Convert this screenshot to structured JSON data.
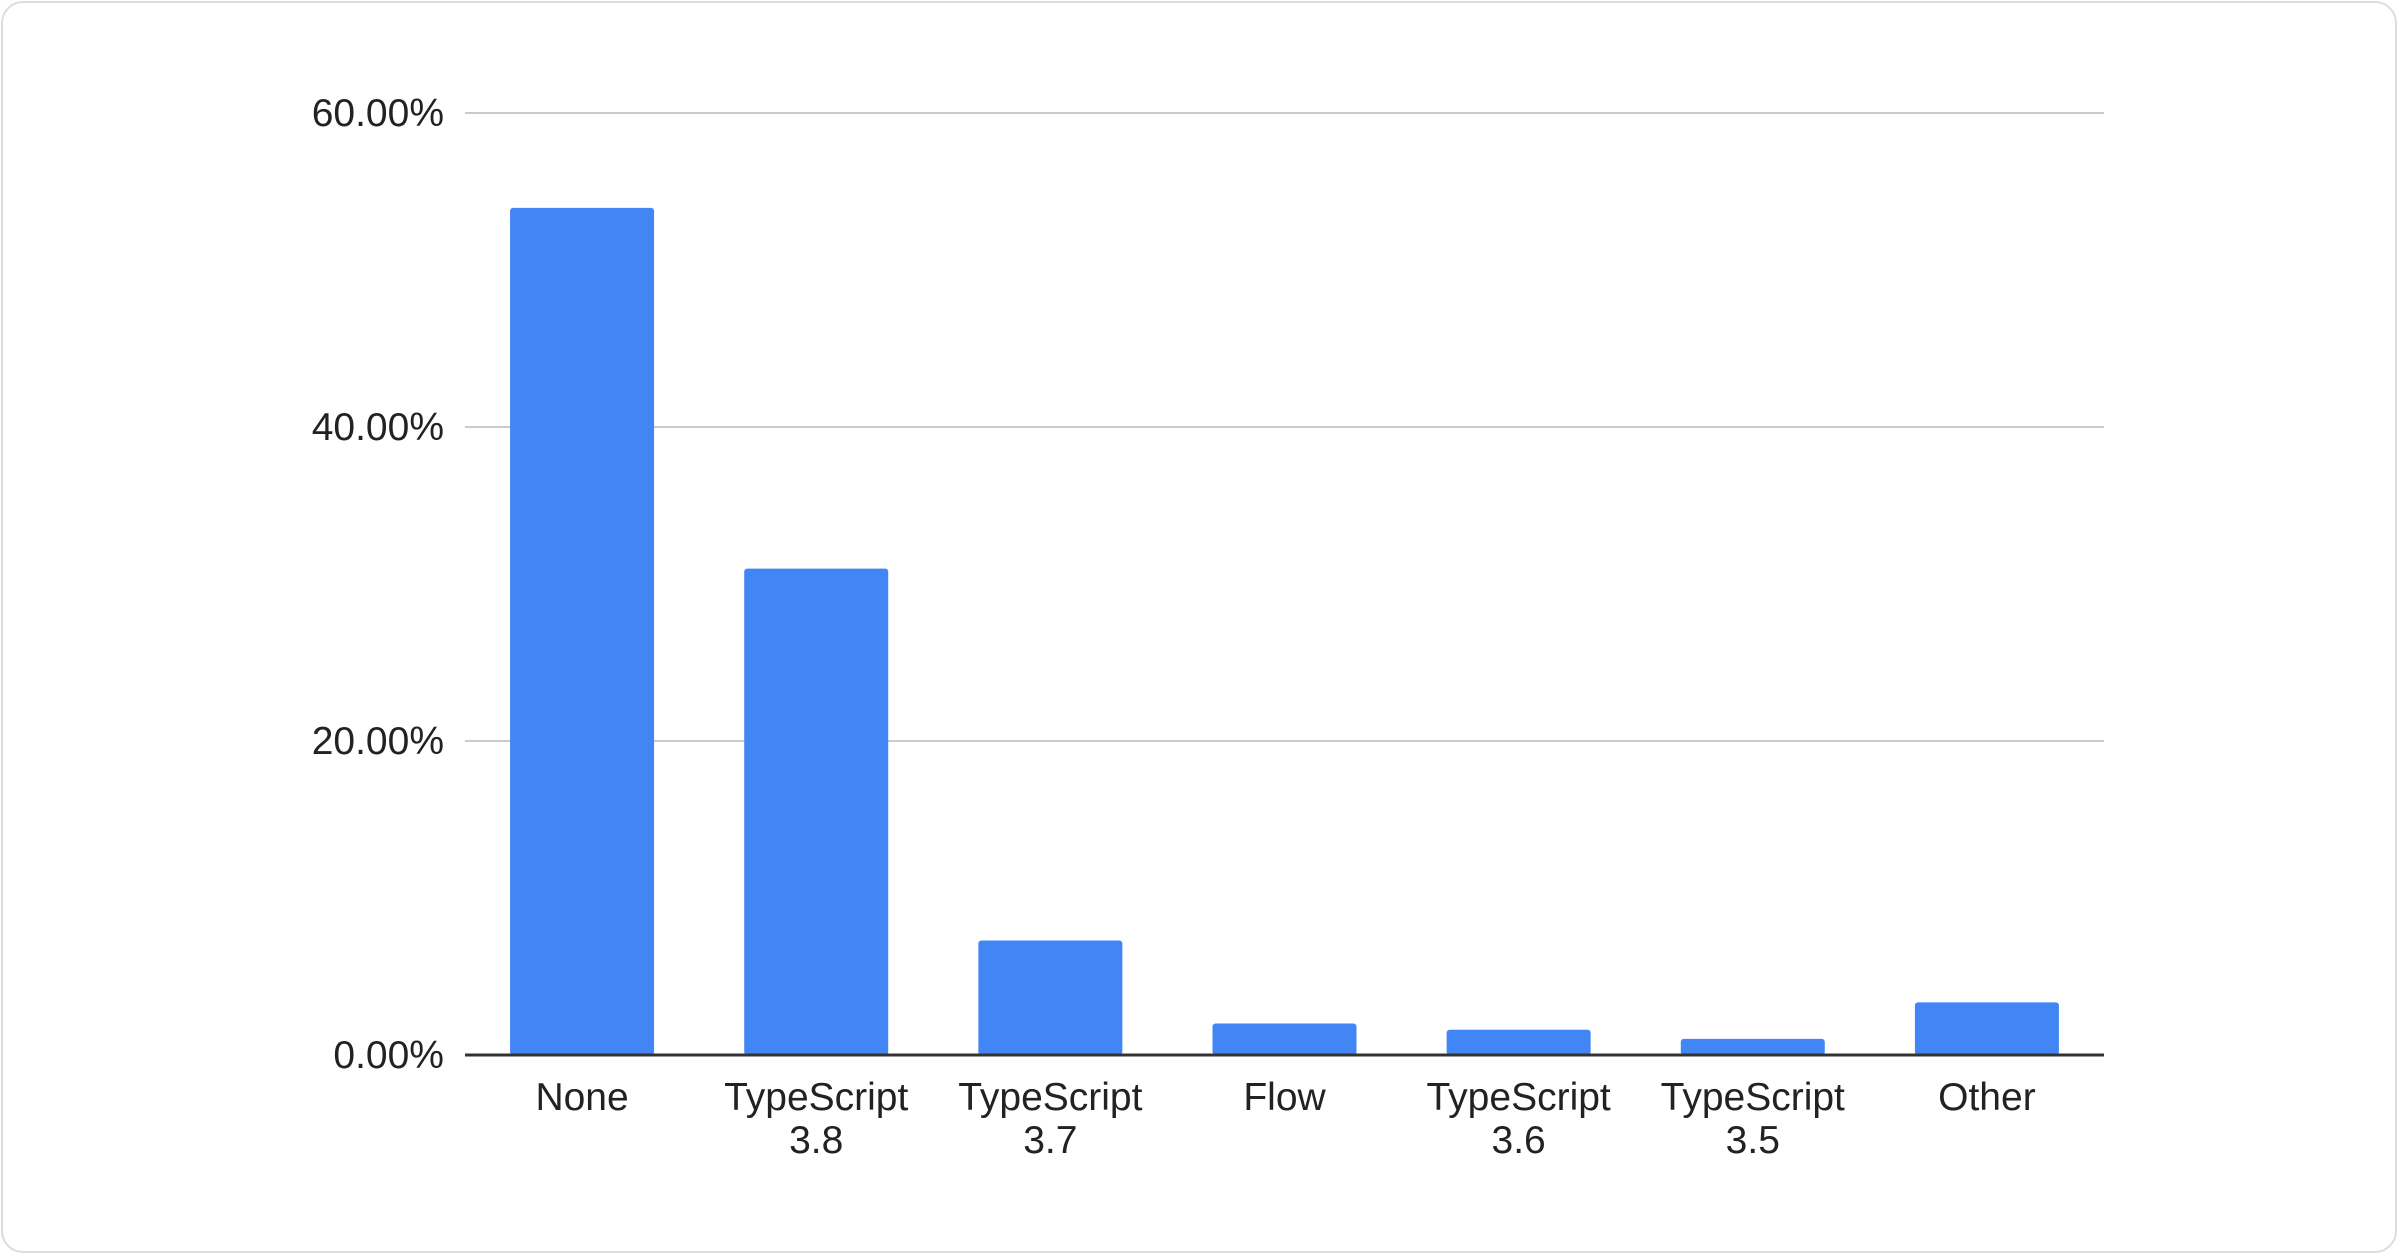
{
  "chart_data": {
    "type": "bar",
    "title": "",
    "xlabel": "",
    "ylabel": "",
    "categories": [
      [
        "None"
      ],
      [
        "TypeScript",
        "3.8"
      ],
      [
        "TypeScript",
        "3.7"
      ],
      [
        "Flow"
      ],
      [
        "TypeScript",
        "3.6"
      ],
      [
        "TypeScript",
        "3.5"
      ],
      [
        "Other"
      ]
    ],
    "values": [
      53.96,
      30.98,
      7.29,
      2.01,
      1.61,
      1.03,
      3.35
    ],
    "ylim": [
      0,
      60
    ],
    "yticks": [
      0,
      20,
      40,
      60
    ],
    "ytick_labels": [
      "0.00%",
      "20.00%",
      "40.00%",
      "60.00%"
    ],
    "grid": true,
    "legend": "none",
    "bar_color": "#4285f4",
    "grid_color": "#cccccc",
    "axis_color": "#333333"
  }
}
